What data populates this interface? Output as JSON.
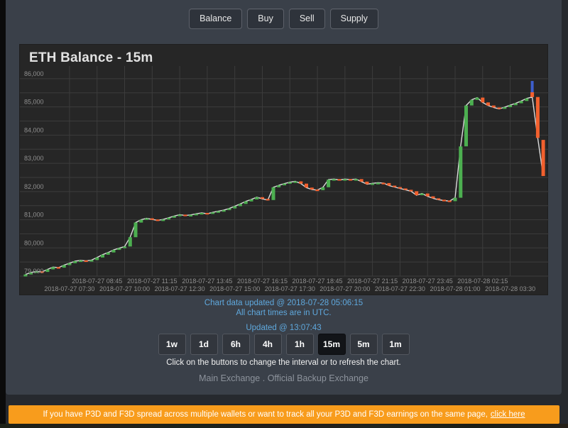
{
  "toolbar": {
    "buttons": [
      {
        "id": "balance",
        "label": "Balance"
      },
      {
        "id": "buy",
        "label": "Buy"
      },
      {
        "id": "sell",
        "label": "Sell"
      },
      {
        "id": "supply",
        "label": "Supply"
      }
    ]
  },
  "chart": {
    "title": "ETH Balance - 15m"
  },
  "status": {
    "chart_updated": "Chart data updated @ 2018-07-28 05:06:15",
    "timezone_note": "All chart times are in UTC.",
    "updated": "Updated @ 13:07:43"
  },
  "intervals": {
    "options": [
      "1w",
      "1d",
      "6h",
      "4h",
      "1h",
      "15m",
      "5m",
      "1m"
    ],
    "active": "15m",
    "hint": "Click on the buttons to change the interval or to refresh the chart."
  },
  "footer": {
    "link_main": "Main Exchange",
    "separator": " . ",
    "link_backup": "Official Backup Exchange"
  },
  "banner": {
    "text": "If you have P3D and F3D spread across multiple wallets or want to track all your P3D and F3D earnings on the same page,",
    "link": "click here"
  },
  "colors": {
    "up": "#4caf50",
    "down": "#f2602e",
    "line": "#dcdcdc",
    "marker_blue": "#3d5ecc",
    "grid": "#3c3c3c",
    "axis_text": "#8f8f8f",
    "card_bg": "#262626",
    "panel_bg": "#3a4049",
    "banner_bg": "#f89c1c",
    "status_text": "#5fa8dd"
  },
  "chart_data": {
    "type": "candlestick",
    "title": "ETH Balance - 15m",
    "interval": "15m",
    "ylim": [
      78850,
      86450
    ],
    "grid": true,
    "grid_step": 500,
    "yticks": [
      {
        "value": 79000,
        "label": "79,000"
      },
      {
        "value": 80000,
        "label": "80,000"
      },
      {
        "value": 81000,
        "label": "81,000"
      },
      {
        "value": 82000,
        "label": "82,000"
      },
      {
        "value": 83000,
        "label": "83,000"
      },
      {
        "value": 84000,
        "label": "84,000"
      },
      {
        "value": 85000,
        "label": "85,000"
      },
      {
        "value": 86000,
        "label": "86,000"
      }
    ],
    "xticks": [
      {
        "index": 8,
        "label": "2018-07-27 07:30",
        "row": "bottom"
      },
      {
        "index": 13,
        "label": "2018-07-27 08:45",
        "row": "top"
      },
      {
        "index": 18,
        "label": "2018-07-27 10:00",
        "row": "bottom"
      },
      {
        "index": 23,
        "label": "2018-07-27 11:15",
        "row": "top"
      },
      {
        "index": 28,
        "label": "2018-07-27 12:30",
        "row": "bottom"
      },
      {
        "index": 33,
        "label": "2018-07-27 13:45",
        "row": "top"
      },
      {
        "index": 38,
        "label": "2018-07-27 15:00",
        "row": "bottom"
      },
      {
        "index": 43,
        "label": "2018-07-27 16:15",
        "row": "top"
      },
      {
        "index": 48,
        "label": "2018-07-27 17:30",
        "row": "bottom"
      },
      {
        "index": 53,
        "label": "2018-07-27 18:45",
        "row": "top"
      },
      {
        "index": 58,
        "label": "2018-07-27 20:00",
        "row": "bottom"
      },
      {
        "index": 63,
        "label": "2018-07-27 21:15",
        "row": "top"
      },
      {
        "index": 68,
        "label": "2018-07-27 22:30",
        "row": "bottom"
      },
      {
        "index": 73,
        "label": "2018-07-27 23:45",
        "row": "top"
      },
      {
        "index": 78,
        "label": "2018-07-28 01:00",
        "row": "bottom"
      },
      {
        "index": 83,
        "label": "2018-07-28 02:15",
        "row": "top"
      },
      {
        "index": 88,
        "label": "2018-07-28 03:30",
        "row": "bottom"
      }
    ],
    "candles": [
      [
        "2018-07-27 05:30",
        78990,
        79060
      ],
      [
        "2018-07-27 05:45",
        79060,
        79130
      ],
      [
        "2018-07-27 06:00",
        79130,
        79170
      ],
      [
        "2018-07-27 06:15",
        79170,
        79150
      ],
      [
        "2018-07-27 06:30",
        79150,
        79240
      ],
      [
        "2018-07-27 06:45",
        79240,
        79320
      ],
      [
        "2018-07-27 07:00",
        79320,
        79300
      ],
      [
        "2018-07-27 07:15",
        79300,
        79390
      ],
      [
        "2018-07-27 07:30",
        79390,
        79460
      ],
      [
        "2018-07-27 07:45",
        79460,
        79530
      ],
      [
        "2018-07-27 08:00",
        79530,
        79560
      ],
      [
        "2018-07-27 08:15",
        79560,
        79540
      ],
      [
        "2018-07-27 08:30",
        79540,
        79570
      ],
      [
        "2018-07-27 08:45",
        79570,
        79660
      ],
      [
        "2018-07-27 09:00",
        79660,
        79760
      ],
      [
        "2018-07-27 09:15",
        79760,
        79840
      ],
      [
        "2018-07-27 09:30",
        79840,
        79930
      ],
      [
        "2018-07-27 09:45",
        79930,
        79990
      ],
      [
        "2018-07-27 10:00",
        79990,
        80050
      ],
      [
        "2018-07-27 10:15",
        80050,
        80380
      ],
      [
        "2018-07-27 10:30",
        80380,
        80900
      ],
      [
        "2018-07-27 10:45",
        80900,
        81000
      ],
      [
        "2018-07-27 11:00",
        81000,
        81050
      ],
      [
        "2018-07-27 11:15",
        81050,
        81010
      ],
      [
        "2018-07-27 11:30",
        81010,
        80980
      ],
      [
        "2018-07-27 11:45",
        80980,
        81010
      ],
      [
        "2018-07-27 12:00",
        81010,
        81070
      ],
      [
        "2018-07-27 12:15",
        81070,
        81130
      ],
      [
        "2018-07-27 12:30",
        81130,
        81180
      ],
      [
        "2018-07-27 12:45",
        81180,
        81150
      ],
      [
        "2018-07-27 13:00",
        81150,
        81170
      ],
      [
        "2018-07-27 13:15",
        81170,
        81210
      ],
      [
        "2018-07-27 13:30",
        81210,
        81240
      ],
      [
        "2018-07-27 13:45",
        81240,
        81210
      ],
      [
        "2018-07-27 14:00",
        81210,
        81260
      ],
      [
        "2018-07-27 14:15",
        81260,
        81300
      ],
      [
        "2018-07-27 14:30",
        81300,
        81340
      ],
      [
        "2018-07-27 14:45",
        81340,
        81400
      ],
      [
        "2018-07-27 15:00",
        81400,
        81480
      ],
      [
        "2018-07-27 15:15",
        81480,
        81560
      ],
      [
        "2018-07-27 15:30",
        81560,
        81650
      ],
      [
        "2018-07-27 15:45",
        81650,
        81720
      ],
      [
        "2018-07-27 16:00",
        81720,
        81800
      ],
      [
        "2018-07-27 16:15",
        81800,
        81740
      ],
      [
        "2018-07-27 16:30",
        81740,
        81700
      ],
      [
        "2018-07-27 16:45",
        81700,
        82150
      ],
      [
        "2018-07-27 17:00",
        82150,
        82220
      ],
      [
        "2018-07-27 17:15",
        82220,
        82280
      ],
      [
        "2018-07-27 17:30",
        82280,
        82330
      ],
      [
        "2018-07-27 17:45",
        82330,
        82360
      ],
      [
        "2018-07-27 18:00",
        82360,
        82280
      ],
      [
        "2018-07-27 18:15",
        82280,
        82140
      ],
      [
        "2018-07-27 18:30",
        82140,
        82070
      ],
      [
        "2018-07-27 18:45",
        82070,
        82050
      ],
      [
        "2018-07-27 19:00",
        82050,
        82150
      ],
      [
        "2018-07-27 19:15",
        82150,
        82420
      ],
      [
        "2018-07-27 19:30",
        82420,
        82440
      ],
      [
        "2018-07-27 19:45",
        82440,
        82410
      ],
      [
        "2018-07-27 20:00",
        82410,
        82440
      ],
      [
        "2018-07-27 20:15",
        82440,
        82420
      ],
      [
        "2018-07-27 20:30",
        82420,
        82440
      ],
      [
        "2018-07-27 20:45",
        82440,
        82350
      ],
      [
        "2018-07-27 21:00",
        82350,
        82260
      ],
      [
        "2018-07-27 21:15",
        82260,
        82290
      ],
      [
        "2018-07-27 21:30",
        82290,
        82310
      ],
      [
        "2018-07-27 21:45",
        82310,
        82300
      ],
      [
        "2018-07-27 22:00",
        82300,
        82210
      ],
      [
        "2018-07-27 22:15",
        82210,
        82160
      ],
      [
        "2018-07-27 22:30",
        82160,
        82110
      ],
      [
        "2018-07-27 22:45",
        82110,
        82060
      ],
      [
        "2018-07-27 23:00",
        82060,
        82010
      ],
      [
        "2018-07-27 23:15",
        82010,
        81870
      ],
      [
        "2018-07-27 23:30",
        81870,
        81930
      ],
      [
        "2018-07-27 23:45",
        81930,
        81830
      ],
      [
        "2018-07-28 00:00",
        81830,
        81760
      ],
      [
        "2018-07-28 00:15",
        81760,
        81710
      ],
      [
        "2018-07-28 00:30",
        81710,
        81680
      ],
      [
        "2018-07-28 00:45",
        81680,
        81660
      ],
      [
        "2018-07-28 01:00",
        81660,
        81780
      ],
      [
        "2018-07-28 01:15",
        81780,
        83600
      ],
      [
        "2018-07-28 01:30",
        83600,
        85050
      ],
      [
        "2018-07-28 01:45",
        85050,
        85250
      ],
      [
        "2018-07-28 02:00",
        85250,
        85330
      ],
      [
        "2018-07-28 02:15",
        85330,
        85160
      ],
      [
        "2018-07-28 02:30",
        85160,
        85050
      ],
      [
        "2018-07-28 02:45",
        85050,
        84980
      ],
      [
        "2018-07-28 03:00",
        84980,
        84930
      ],
      [
        "2018-07-28 03:15",
        84930,
        84990
      ],
      [
        "2018-07-28 03:30",
        84990,
        85060
      ],
      [
        "2018-07-28 03:45",
        85060,
        85130
      ],
      [
        "2018-07-28 04:00",
        85130,
        85210
      ],
      [
        "2018-07-28 04:15",
        85210,
        85300
      ],
      [
        "2018-07-28 04:30",
        85520,
        85350
      ],
      [
        "2018-07-28 04:45",
        85350,
        83900
      ],
      [
        "2018-07-28 05:00",
        83830,
        82550
      ]
    ],
    "marker": {
      "name": "current-candle-high-wick",
      "time": "2018-07-28 04:30",
      "from": 85480,
      "to": 85920,
      "color": "#3d5ecc"
    }
  }
}
